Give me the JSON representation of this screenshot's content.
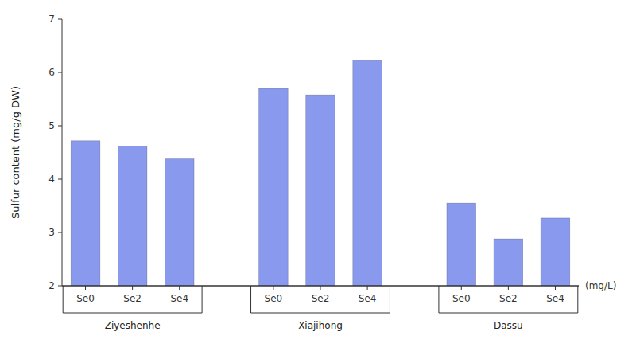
{
  "chart_data": {
    "type": "bar",
    "categories": [
      "Se0",
      "Se2",
      "Se4",
      "Se0",
      "Se2",
      "Se4",
      "Se0",
      "Se2",
      "Se4"
    ],
    "values": [
      4.72,
      4.62,
      4.38,
      5.7,
      5.58,
      6.22,
      3.55,
      2.88,
      3.27
    ],
    "groups": [
      "Ziyeshenhe",
      "Xiajihong",
      "Dassu"
    ],
    "color": "#8899ee",
    "ylabel": "Sulfur content (mg/g DW)",
    "xlabel": "(mg/L)",
    "ylim": [
      2,
      7
    ],
    "yticks": [
      2,
      3,
      4,
      5,
      6,
      7
    ],
    "grid": false
  }
}
